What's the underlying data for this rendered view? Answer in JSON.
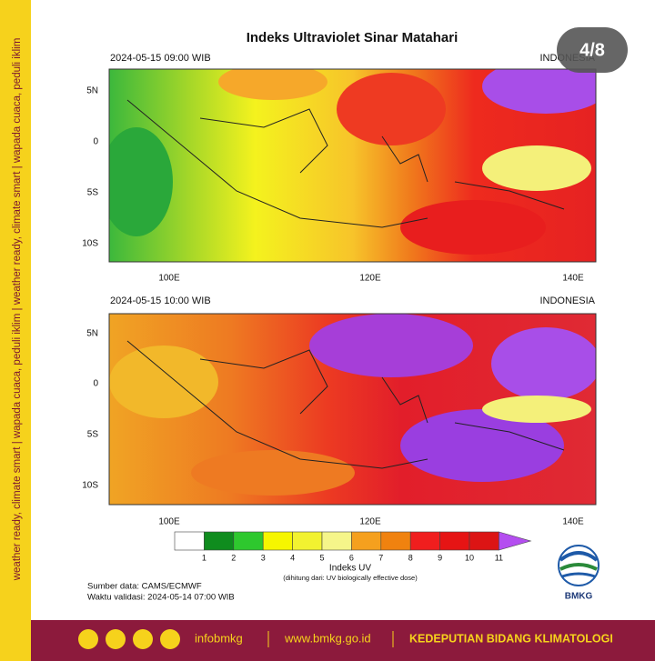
{
  "side_banner": "weather ready, climate smart  |  wapada cuaca, peduli iklim  |  weather ready, climate smart  |  wapada cuaca, peduli iklim",
  "counter": "4/8",
  "title": "Indeks Ultraviolet Sinar Matahari",
  "panels": [
    {
      "time": "2024-05-15  09:00 WIB",
      "region": "INDONESIA",
      "lat_labels": [
        "5N",
        "0",
        "5S",
        "10S"
      ],
      "lon_labels": [
        "100E",
        "120E",
        "140E"
      ]
    },
    {
      "time": "2024-05-15  10:00 WIB",
      "region": "INDONESIA",
      "lat_labels": [
        "5N",
        "0",
        "5S",
        "10S"
      ],
      "lon_labels": [
        "100E",
        "120E",
        "140E"
      ]
    }
  ],
  "legend": {
    "colors": [
      "#ffffff",
      "#0f8c1e",
      "#2ec82e",
      "#f6f600",
      "#f2f230",
      "#f5f58a",
      "#f5a01e",
      "#f0820f",
      "#f01e1e",
      "#e61414",
      "#dc1414",
      "#b44ef0"
    ],
    "labels": [
      "1",
      "2",
      "3",
      "4",
      "5",
      "6",
      "7",
      "8",
      "9",
      "10",
      "11"
    ],
    "title": "Indeks UV",
    "note": "(dihitung dari: UV biologically effective dose)"
  },
  "source": "Sumber data: CAMS/ECMWF",
  "validation": "Waktu validasi: 2024-05-14 07:00 WIB",
  "logo": "BMKG",
  "footer": {
    "handle": "infobmkg",
    "website": "www.bmkg.go.id",
    "department": "KEDEPUTIAN BIDANG KLIMATOLOGI"
  }
}
